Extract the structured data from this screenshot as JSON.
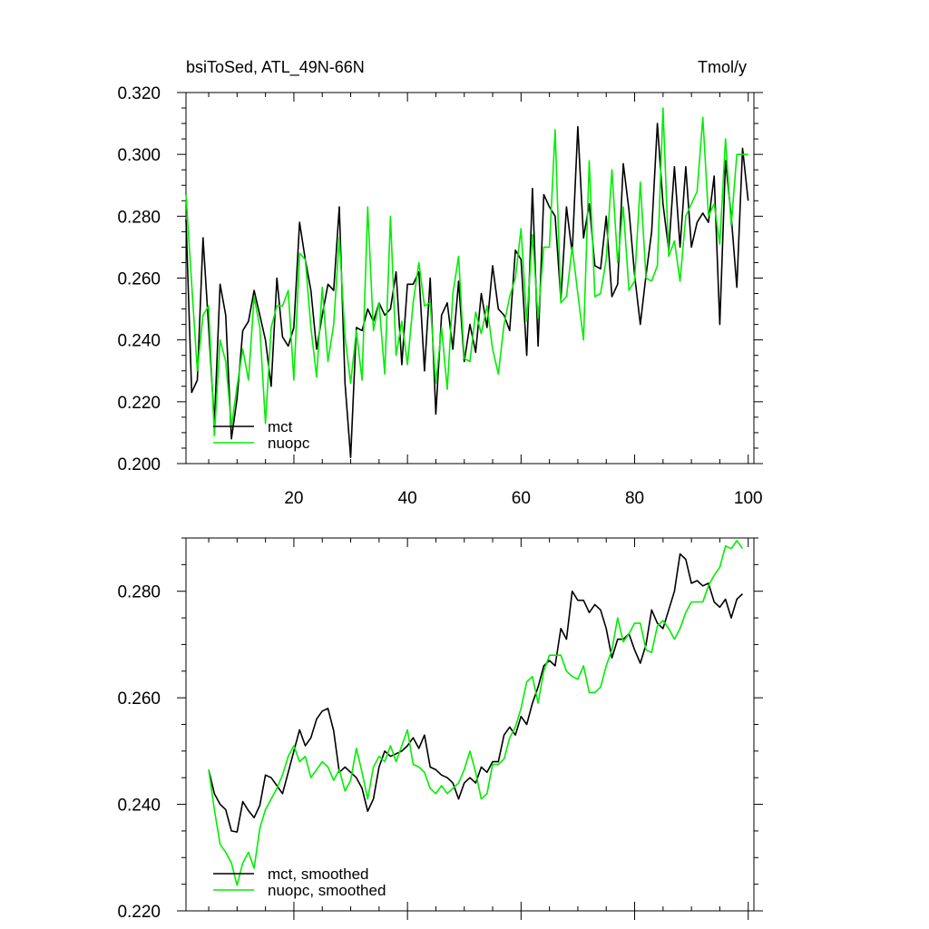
{
  "chart_data": [
    {
      "type": "line",
      "title": "bsiToSed, ATL_49N-66N",
      "units": "Tmol/y",
      "xlim": [
        1,
        101
      ],
      "ylim": [
        0.2,
        0.32
      ],
      "xticks": [
        20,
        40,
        60,
        80,
        100
      ],
      "yticks": [
        "0.200",
        "0.220",
        "0.240",
        "0.260",
        "0.280",
        "0.300",
        "0.320"
      ],
      "legend_position": "bottom-left",
      "series": [
        {
          "name": "mct",
          "color": "#000000",
          "y": [
            0.279,
            0.223,
            0.227,
            0.273,
            0.244,
            0.213,
            0.258,
            0.248,
            0.208,
            0.221,
            0.243,
            0.246,
            0.256,
            0.248,
            0.24,
            0.225,
            0.26,
            0.241,
            0.238,
            0.244,
            0.278,
            0.266,
            0.256,
            0.237,
            0.248,
            0.258,
            0.256,
            0.283,
            0.226,
            0.202,
            0.244,
            0.243,
            0.25,
            0.246,
            0.252,
            0.248,
            0.25,
            0.262,
            0.232,
            0.258,
            0.258,
            0.262,
            0.23,
            0.26,
            0.216,
            0.248,
            0.252,
            0.237,
            0.259,
            0.233,
            0.245,
            0.236,
            0.255,
            0.244,
            0.264,
            0.25,
            0.248,
            0.243,
            0.269,
            0.266,
            0.235,
            0.289,
            0.238,
            0.287,
            0.283,
            0.28,
            0.253,
            0.283,
            0.268,
            0.309,
            0.273,
            0.284,
            0.264,
            0.263,
            0.28,
            0.254,
            0.258,
            0.297,
            0.282,
            0.261,
            0.245,
            0.261,
            0.275,
            0.31,
            0.284,
            0.269,
            0.296,
            0.27,
            0.296,
            0.27,
            0.278,
            0.281,
            0.278,
            0.293,
            0.245,
            0.298,
            0.28,
            0.257,
            0.302,
            0.285
          ]
        },
        {
          "name": "nuopc",
          "color": "#00ee00",
          "y": [
            0.287,
            0.258,
            0.23,
            0.248,
            0.251,
            0.209,
            0.24,
            0.233,
            0.212,
            0.225,
            0.237,
            0.227,
            0.254,
            0.244,
            0.213,
            0.244,
            0.251,
            0.251,
            0.256,
            0.227,
            0.268,
            0.266,
            0.244,
            0.228,
            0.257,
            0.233,
            0.245,
            0.273,
            0.241,
            0.226,
            0.243,
            0.227,
            0.283,
            0.243,
            0.252,
            0.229,
            0.28,
            0.235,
            0.246,
            0.232,
            0.252,
            0.265,
            0.251,
            0.252,
            0.226,
            0.244,
            0.224,
            0.255,
            0.267,
            0.234,
            0.233,
            0.249,
            0.242,
            0.251,
            0.237,
            0.229,
            0.245,
            0.254,
            0.26,
            0.276,
            0.246,
            0.274,
            0.247,
            0.27,
            0.27,
            0.308,
            0.252,
            0.254,
            0.27,
            0.255,
            0.24,
            0.298,
            0.254,
            0.255,
            0.266,
            0.295,
            0.265,
            0.283,
            0.256,
            0.259,
            0.291,
            0.26,
            0.259,
            0.264,
            0.315,
            0.267,
            0.272,
            0.259,
            0.28,
            0.284,
            0.288,
            0.312,
            0.28,
            0.284,
            0.271,
            0.305,
            0.277,
            0.3,
            0.3,
            0.3
          ]
        }
      ]
    },
    {
      "type": "line",
      "xlim": [
        1,
        101
      ],
      "ylim": [
        0.22,
        0.29
      ],
      "yticks": [
        "0.220",
        "0.240",
        "0.260",
        "0.280"
      ],
      "legend_position": "bottom-left",
      "series": [
        {
          "name": "mct, smoothed",
          "color": "#000000",
          "x_start": 5,
          "y": [
            0.2465,
            0.242,
            0.24,
            0.239,
            0.235,
            0.2348,
            0.2405,
            0.2388,
            0.2375,
            0.2398,
            0.2455,
            0.245,
            0.2435,
            0.242,
            0.246,
            0.25,
            0.254,
            0.251,
            0.2525,
            0.256,
            0.2575,
            0.258,
            0.2538,
            0.246,
            0.247,
            0.246,
            0.245,
            0.243,
            0.2387,
            0.241,
            0.247,
            0.25,
            0.249,
            0.2495,
            0.25,
            0.251,
            0.2525,
            0.2505,
            0.253,
            0.247,
            0.2465,
            0.2455,
            0.245,
            0.244,
            0.241,
            0.244,
            0.245,
            0.244,
            0.247,
            0.246,
            0.248,
            0.248,
            0.253,
            0.2545,
            0.253,
            0.2565,
            0.255,
            0.259,
            0.262,
            0.266,
            0.267,
            0.266,
            0.273,
            0.271,
            0.28,
            0.2783,
            0.2783,
            0.276,
            0.2775,
            0.2765,
            0.273,
            0.2675,
            0.271,
            0.271,
            0.272,
            0.269,
            0.2665,
            0.27,
            0.2765,
            0.274,
            0.273,
            0.2765,
            0.28,
            0.287,
            0.286,
            0.2815,
            0.282,
            0.281,
            0.2815,
            0.278,
            0.277,
            0.2785,
            0.275,
            0.2785,
            0.2795
          ]
        },
        {
          "name": "nuopc, smoothed",
          "color": "#00ee00",
          "x_start": 5,
          "y": [
            0.2465,
            0.239,
            0.2325,
            0.231,
            0.229,
            0.2248,
            0.229,
            0.231,
            0.228,
            0.2355,
            0.239,
            0.241,
            0.243,
            0.2455,
            0.249,
            0.251,
            0.248,
            0.249,
            0.245,
            0.2465,
            0.248,
            0.247,
            0.2445,
            0.2465,
            0.2425,
            0.2445,
            0.2505,
            0.246,
            0.241,
            0.247,
            0.249,
            0.248,
            0.251,
            0.248,
            0.251,
            0.254,
            0.2475,
            0.247,
            0.246,
            0.243,
            0.242,
            0.2435,
            0.242,
            0.243,
            0.244,
            0.2465,
            0.25,
            0.246,
            0.241,
            0.242,
            0.2475,
            0.2475,
            0.2485,
            0.2525,
            0.2545,
            0.258,
            0.263,
            0.264,
            0.259,
            0.265,
            0.268,
            0.268,
            0.268,
            0.265,
            0.264,
            0.2635,
            0.266,
            0.261,
            0.261,
            0.262,
            0.266,
            0.269,
            0.275,
            0.2705,
            0.272,
            0.274,
            0.274,
            0.269,
            0.2685,
            0.2735,
            0.2745,
            0.273,
            0.271,
            0.273,
            0.276,
            0.278,
            0.278,
            0.278,
            0.281,
            0.283,
            0.2845,
            0.2885,
            0.288,
            0.2895,
            0.288
          ]
        }
      ]
    }
  ]
}
